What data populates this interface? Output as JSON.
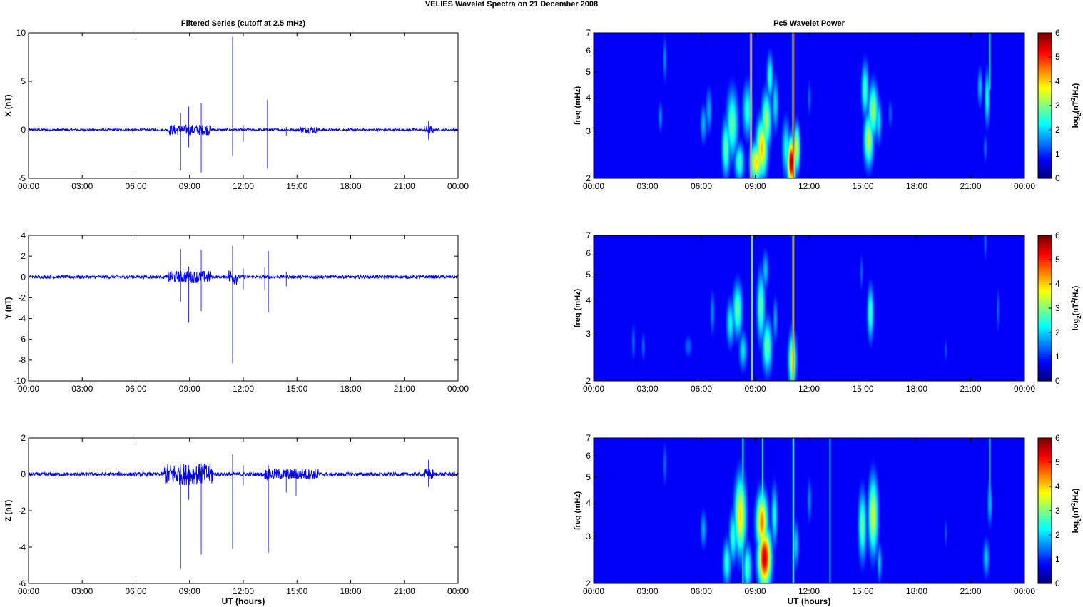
{
  "figure": {
    "title": "VELIES Wavelet Spectra on 21 December  2008"
  },
  "colors": {
    "trace": "#0000ff",
    "bg": "#ffffff",
    "axis": "#000000",
    "jet_low": "#00008f",
    "jet_high": "#800000"
  },
  "chart_data": [
    {
      "type": "line",
      "title": "Filtered Series (cutoff at 2.5 mHz)",
      "ylabel": "X (nT)",
      "xlabel": "",
      "xlim_hours": [
        0,
        24
      ],
      "ylim": [
        -5,
        10
      ],
      "yticks": [
        "-5",
        "0",
        "5",
        "10"
      ],
      "xticks": [
        "00:00",
        "03:00",
        "06:00",
        "09:00",
        "12:00",
        "15:00",
        "18:00",
        "21:00",
        "00:00"
      ],
      "baseline_noise": 0.12,
      "spikes": [
        {
          "t": 8.5,
          "min": -4.2,
          "max": 1.7
        },
        {
          "t": 8.95,
          "min": -1.8,
          "max": 2.4
        },
        {
          "t": 9.65,
          "min": -4.4,
          "max": 2.8
        },
        {
          "t": 11.4,
          "min": -2.7,
          "max": 9.6
        },
        {
          "t": 12.0,
          "min": -1.2,
          "max": 0.5
        },
        {
          "t": 13.35,
          "min": -4.0,
          "max": 3.1
        },
        {
          "t": 14.4,
          "min": -0.6,
          "max": 0.3
        },
        {
          "t": 22.35,
          "min": -1.0,
          "max": 0.9
        }
      ],
      "active_bursts": [
        {
          "t0": 7.8,
          "t1": 10.2,
          "amp": 0.55
        },
        {
          "t0": 15.2,
          "t1": 16.2,
          "amp": 0.35
        },
        {
          "t0": 22.1,
          "t1": 22.6,
          "amp": 0.4
        }
      ]
    },
    {
      "type": "line",
      "title": "",
      "ylabel": "Y (nT)",
      "xlabel": "",
      "xlim_hours": [
        0,
        24
      ],
      "ylim": [
        -10,
        4
      ],
      "yticks": [
        "-10",
        "-8",
        "-6",
        "-4",
        "-2",
        "0",
        "2",
        "4"
      ],
      "xticks": [
        "00:00",
        "03:00",
        "06:00",
        "09:00",
        "12:00",
        "15:00",
        "18:00",
        "21:00",
        "00:00"
      ],
      "baseline_noise": 0.15,
      "spikes": [
        {
          "t": 8.5,
          "min": -2.4,
          "max": 2.7
        },
        {
          "t": 8.95,
          "min": -4.4,
          "max": 1.0
        },
        {
          "t": 9.65,
          "min": -3.3,
          "max": 2.6
        },
        {
          "t": 11.4,
          "min": -8.3,
          "max": 3.0
        },
        {
          "t": 12.0,
          "min": -1.2,
          "max": 0.8
        },
        {
          "t": 13.2,
          "min": -1.3,
          "max": 0.9
        },
        {
          "t": 13.4,
          "min": -3.4,
          "max": 2.5
        },
        {
          "t": 14.4,
          "min": -0.9,
          "max": 0.5
        }
      ],
      "active_bursts": [
        {
          "t0": 7.8,
          "t1": 10.2,
          "amp": 0.6
        },
        {
          "t0": 11.2,
          "t1": 11.7,
          "amp": 0.8
        }
      ]
    },
    {
      "type": "line",
      "title": "",
      "ylabel": "Z (nT)",
      "xlabel": "UT (hours)",
      "xlim_hours": [
        0,
        24
      ],
      "ylim": [
        -6,
        2
      ],
      "yticks": [
        "-6",
        "-4",
        "-2",
        "0",
        "2"
      ],
      "xticks": [
        "00:00",
        "03:00",
        "06:00",
        "09:00",
        "12:00",
        "15:00",
        "18:00",
        "21:00",
        "00:00"
      ],
      "baseline_noise": 0.1,
      "spikes": [
        {
          "t": 8.5,
          "min": -5.2,
          "max": 0.3
        },
        {
          "t": 8.95,
          "min": -1.4,
          "max": 0.5
        },
        {
          "t": 9.65,
          "min": -4.4,
          "max": 0.6
        },
        {
          "t": 11.4,
          "min": -4.1,
          "max": 1.1
        },
        {
          "t": 12.0,
          "min": -0.6,
          "max": 0.5
        },
        {
          "t": 13.4,
          "min": -4.3,
          "max": 0.5
        },
        {
          "t": 14.4,
          "min": -1.0,
          "max": 0.3
        },
        {
          "t": 14.95,
          "min": -1.2,
          "max": 0.3
        },
        {
          "t": 22.35,
          "min": -0.7,
          "max": 0.8
        }
      ],
      "active_bursts": [
        {
          "t0": 7.6,
          "t1": 10.3,
          "amp": 0.6
        },
        {
          "t0": 13.2,
          "t1": 16.2,
          "amp": 0.3
        },
        {
          "t0": 22.1,
          "t1": 22.6,
          "amp": 0.3
        }
      ]
    },
    {
      "type": "heatmap",
      "title": "Pc5 Wavelet Power",
      "ylabel": "freq (mHz)",
      "xlabel": "",
      "xlim_hours": [
        0,
        24
      ],
      "ylim_mHz": [
        2,
        7
      ],
      "yscale": "log",
      "yticks": [
        "2",
        "3",
        "4",
        "5",
        "6",
        "7"
      ],
      "xticks": [
        "00:00",
        "03:00",
        "06:00",
        "09:00",
        "12:00",
        "15:00",
        "18:00",
        "21:00",
        "00:00"
      ],
      "colorbar": {
        "label": "log2(nT2/Hz)",
        "min": 0,
        "max": 6,
        "ticks": [
          "0",
          "1",
          "2",
          "3",
          "4",
          "5",
          "6"
        ]
      },
      "blobs": [
        {
          "t": 3.95,
          "f": 5.6,
          "w": 0.05,
          "h": 0.12,
          "v": 1.2
        },
        {
          "t": 3.7,
          "f": 3.4,
          "w": 0.06,
          "h": 0.08,
          "v": 1.2
        },
        {
          "t": 6.1,
          "f": 3.2,
          "w": 0.08,
          "h": 0.1,
          "v": 1.5
        },
        {
          "t": 6.4,
          "f": 3.6,
          "w": 0.08,
          "h": 0.12,
          "v": 1.4
        },
        {
          "t": 7.35,
          "f": 2.6,
          "w": 0.1,
          "h": 0.15,
          "v": 2.6
        },
        {
          "t": 7.7,
          "f": 3.2,
          "w": 0.14,
          "h": 0.18,
          "v": 2.6
        },
        {
          "t": 8.1,
          "f": 2.3,
          "w": 0.12,
          "h": 0.1,
          "v": 2.4
        },
        {
          "t": 8.55,
          "f": 3.6,
          "w": 0.12,
          "h": 0.14,
          "v": 2.2
        },
        {
          "t": 9.05,
          "f": 2.3,
          "w": 0.15,
          "h": 0.1,
          "v": 3.8
        },
        {
          "t": 9.35,
          "f": 2.6,
          "w": 0.14,
          "h": 0.15,
          "v": 4.0
        },
        {
          "t": 9.6,
          "f": 3.3,
          "w": 0.12,
          "h": 0.15,
          "v": 3.0
        },
        {
          "t": 9.8,
          "f": 4.8,
          "w": 0.08,
          "h": 0.12,
          "v": 2.2
        },
        {
          "t": 10.1,
          "f": 3.8,
          "w": 0.08,
          "h": 0.14,
          "v": 1.8
        },
        {
          "t": 10.7,
          "f": 2.6,
          "w": 0.1,
          "h": 0.15,
          "v": 2.0
        },
        {
          "t": 11.0,
          "f": 2.3,
          "w": 0.1,
          "h": 0.12,
          "v": 5.8
        },
        {
          "t": 11.3,
          "f": 2.6,
          "w": 0.08,
          "h": 0.12,
          "v": 3.4
        },
        {
          "t": 12.0,
          "f": 4.0,
          "w": 0.05,
          "h": 0.1,
          "v": 1.0
        },
        {
          "t": 15.1,
          "f": 4.3,
          "w": 0.09,
          "h": 0.14,
          "v": 2.4
        },
        {
          "t": 15.3,
          "f": 2.8,
          "w": 0.12,
          "h": 0.14,
          "v": 3.2
        },
        {
          "t": 15.55,
          "f": 3.6,
          "w": 0.12,
          "h": 0.14,
          "v": 3.0
        },
        {
          "t": 15.85,
          "f": 3.3,
          "w": 0.08,
          "h": 0.12,
          "v": 1.8
        },
        {
          "t": 16.5,
          "f": 3.5,
          "w": 0.05,
          "h": 0.08,
          "v": 1.0
        },
        {
          "t": 21.5,
          "f": 4.4,
          "w": 0.06,
          "h": 0.1,
          "v": 1.6
        },
        {
          "t": 21.9,
          "f": 4.0,
          "w": 0.06,
          "h": 0.14,
          "v": 2.2
        },
        {
          "t": 21.8,
          "f": 2.6,
          "w": 0.05,
          "h": 0.08,
          "v": 1.0
        }
      ],
      "ridges": [
        {
          "t": 8.75,
          "w": 0.05,
          "v": 6.3,
          "fmin": 2,
          "fmax": 7
        },
        {
          "t": 11.1,
          "w": 0.05,
          "v": 6.3,
          "fmin": 2,
          "fmax": 7
        },
        {
          "t": 22.05,
          "w": 0.04,
          "v": 4.6,
          "fmin": 4.3,
          "fmax": 7
        }
      ]
    },
    {
      "type": "heatmap",
      "title": "",
      "ylabel": "freq (mHz)",
      "xlabel": "",
      "xlim_hours": [
        0,
        24
      ],
      "ylim_mHz": [
        2,
        7
      ],
      "yscale": "log",
      "yticks": [
        "2",
        "3",
        "4",
        "5",
        "6",
        "7"
      ],
      "xticks": [
        "00:00",
        "03:00",
        "06:00",
        "09:00",
        "12:00",
        "15:00",
        "18:00",
        "21:00",
        "00:00"
      ],
      "colorbar": {
        "label": "log2(nT2/Hz)",
        "min": 0,
        "max": 6,
        "ticks": [
          "0",
          "1",
          "2",
          "3",
          "4",
          "5",
          "6"
        ]
      },
      "blobs": [
        {
          "t": 2.2,
          "f": 2.8,
          "w": 0.05,
          "h": 0.1,
          "v": 1.0
        },
        {
          "t": 2.75,
          "f": 2.7,
          "w": 0.05,
          "h": 0.08,
          "v": 1.0
        },
        {
          "t": 5.25,
          "f": 2.7,
          "w": 0.1,
          "h": 0.06,
          "v": 1.0
        },
        {
          "t": 6.6,
          "f": 3.6,
          "w": 0.06,
          "h": 0.12,
          "v": 1.2
        },
        {
          "t": 7.6,
          "f": 3.3,
          "w": 0.1,
          "h": 0.12,
          "v": 2.0
        },
        {
          "t": 8.0,
          "f": 3.7,
          "w": 0.12,
          "h": 0.14,
          "v": 2.6
        },
        {
          "t": 8.3,
          "f": 2.6,
          "w": 0.1,
          "h": 0.1,
          "v": 1.8
        },
        {
          "t": 9.3,
          "f": 3.8,
          "w": 0.1,
          "h": 0.18,
          "v": 2.6
        },
        {
          "t": 9.65,
          "f": 2.7,
          "w": 0.12,
          "h": 0.14,
          "v": 2.6
        },
        {
          "t": 9.55,
          "f": 5.2,
          "w": 0.08,
          "h": 0.1,
          "v": 1.6
        },
        {
          "t": 10.1,
          "f": 3.4,
          "w": 0.06,
          "h": 0.12,
          "v": 1.4
        },
        {
          "t": 11.05,
          "f": 2.4,
          "w": 0.1,
          "h": 0.14,
          "v": 3.2
        },
        {
          "t": 15.4,
          "f": 3.6,
          "w": 0.08,
          "h": 0.14,
          "v": 2.4
        },
        {
          "t": 14.9,
          "f": 5.1,
          "w": 0.04,
          "h": 0.1,
          "v": 1.0
        },
        {
          "t": 19.6,
          "f": 2.6,
          "w": 0.04,
          "h": 0.06,
          "v": 0.9
        },
        {
          "t": 22.5,
          "f": 3.7,
          "w": 0.04,
          "h": 0.12,
          "v": 1.0
        },
        {
          "t": 21.8,
          "f": 6.6,
          "w": 0.04,
          "h": 0.1,
          "v": 1.0
        }
      ],
      "ridges": [
        {
          "t": 8.8,
          "w": 0.04,
          "v": 4.0,
          "fmin": 2,
          "fmax": 7
        },
        {
          "t": 11.1,
          "w": 0.05,
          "v": 5.6,
          "fmin": 2,
          "fmax": 7
        }
      ]
    },
    {
      "type": "heatmap",
      "title": "",
      "ylabel": "freq (mHz)",
      "xlabel": "UT (hours)",
      "xlim_hours": [
        0,
        24
      ],
      "ylim_mHz": [
        2,
        7
      ],
      "yscale": "log",
      "yticks": [
        "2",
        "3",
        "4",
        "5",
        "6",
        "7"
      ],
      "xticks": [
        "00:00",
        "03:00",
        "06:00",
        "09:00",
        "12:00",
        "15:00",
        "18:00",
        "21:00",
        "00:00"
      ],
      "colorbar": {
        "label": "log2(nT2/Hz)",
        "min": 0,
        "max": 6,
        "ticks": [
          "0",
          "1",
          "2",
          "3",
          "4",
          "5",
          "6"
        ]
      },
      "blobs": [
        {
          "t": 3.95,
          "f": 5.6,
          "w": 0.05,
          "h": 0.12,
          "v": 1.0
        },
        {
          "t": 6.1,
          "f": 3.2,
          "w": 0.08,
          "h": 0.1,
          "v": 1.4
        },
        {
          "t": 7.4,
          "f": 2.4,
          "w": 0.1,
          "h": 0.12,
          "v": 2.2
        },
        {
          "t": 7.75,
          "f": 3.0,
          "w": 0.1,
          "h": 0.14,
          "v": 2.2
        },
        {
          "t": 8.15,
          "f": 3.6,
          "w": 0.14,
          "h": 0.2,
          "v": 3.8
        },
        {
          "t": 8.55,
          "f": 2.3,
          "w": 0.1,
          "h": 0.12,
          "v": 2.4
        },
        {
          "t": 9.5,
          "f": 2.5,
          "w": 0.16,
          "h": 0.15,
          "v": 5.6
        },
        {
          "t": 9.35,
          "f": 3.4,
          "w": 0.14,
          "h": 0.15,
          "v": 4.4
        },
        {
          "t": 10.05,
          "f": 3.6,
          "w": 0.08,
          "h": 0.16,
          "v": 2.0
        },
        {
          "t": 11.25,
          "f": 2.8,
          "w": 0.08,
          "h": 0.12,
          "v": 1.6
        },
        {
          "t": 12.0,
          "f": 4.1,
          "w": 0.06,
          "h": 0.12,
          "v": 1.2
        },
        {
          "t": 14.95,
          "f": 3.3,
          "w": 0.1,
          "h": 0.18,
          "v": 2.6
        },
        {
          "t": 15.55,
          "f": 3.6,
          "w": 0.12,
          "h": 0.2,
          "v": 3.4
        },
        {
          "t": 15.9,
          "f": 2.4,
          "w": 0.06,
          "h": 0.1,
          "v": 1.6
        },
        {
          "t": 19.6,
          "f": 3.1,
          "w": 0.04,
          "h": 0.08,
          "v": 0.9
        },
        {
          "t": 21.85,
          "f": 2.5,
          "w": 0.08,
          "h": 0.1,
          "v": 1.6
        },
        {
          "t": 22.05,
          "f": 4.0,
          "w": 0.06,
          "h": 0.12,
          "v": 1.6
        }
      ],
      "ridges": [
        {
          "t": 8.3,
          "w": 0.045,
          "v": 3.0,
          "fmin": 2,
          "fmax": 7
        },
        {
          "t": 9.4,
          "w": 0.04,
          "v": 3.0,
          "fmin": 2,
          "fmax": 7
        },
        {
          "t": 11.1,
          "w": 0.045,
          "v": 3.2,
          "fmin": 2,
          "fmax": 7
        },
        {
          "t": 13.15,
          "w": 0.04,
          "v": 2.6,
          "fmin": 2,
          "fmax": 7
        },
        {
          "t": 22.05,
          "w": 0.04,
          "v": 3.4,
          "fmin": 4.3,
          "fmax": 7
        }
      ]
    }
  ]
}
